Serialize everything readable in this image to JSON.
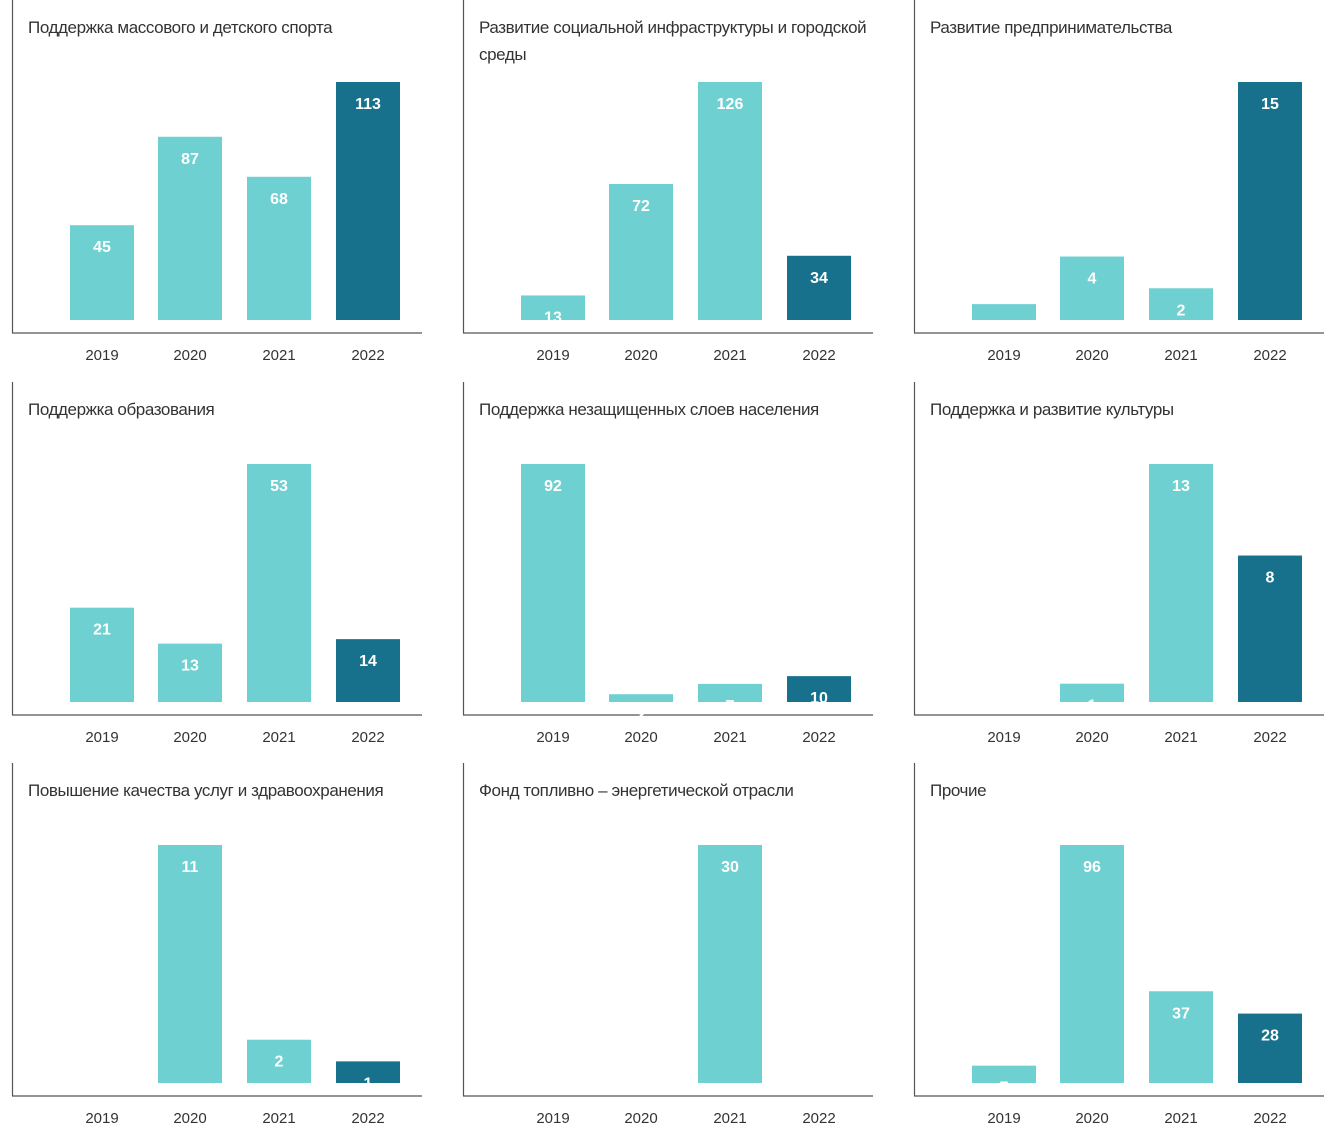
{
  "colors": {
    "regular": "#6fd0d1",
    "highlight": "#17718c",
    "axis": "#555555",
    "text": "#333333",
    "label": "#ffffff"
  },
  "chart_data": [
    {
      "type": "bar",
      "title": "Поддержка массового и детского спорта",
      "categories": [
        "2019",
        "2020",
        "2021",
        "2022"
      ],
      "values": [
        45,
        87,
        68,
        113
      ],
      "highlight": "2022"
    },
    {
      "type": "bar",
      "title": "Развитие социальной инфраструктуры и городской среды",
      "categories": [
        "2019",
        "2020",
        "2021",
        "2022"
      ],
      "values": [
        13,
        72,
        126,
        34
      ],
      "highlight": "2022"
    },
    {
      "type": "bar",
      "title": "Развитие предпринимательства",
      "categories": [
        "2019",
        "2020",
        "2021",
        "2022"
      ],
      "values": [
        1,
        4,
        2,
        15
      ],
      "highlight": "2022"
    },
    {
      "type": "bar",
      "title": "Поддержка образования",
      "categories": [
        "2019",
        "2020",
        "2021",
        "2022"
      ],
      "values": [
        21,
        13,
        53,
        14
      ],
      "highlight": "2022"
    },
    {
      "type": "bar",
      "title": "Поддержка незащищенных слоев населения",
      "categories": [
        "2019",
        "2020",
        "2021",
        "2022"
      ],
      "values": [
        92,
        3,
        7,
        10
      ],
      "highlight": "2022"
    },
    {
      "type": "bar",
      "title": "Поддержка и развитие культуры",
      "categories": [
        "2019",
        "2020",
        "2021",
        "2022"
      ],
      "values": [
        null,
        1,
        13,
        8
      ],
      "highlight": "2022"
    },
    {
      "type": "bar",
      "title": "Повышение качества услуг и здравоохранения",
      "categories": [
        "2019",
        "2020",
        "2021",
        "2022"
      ],
      "values": [
        null,
        11,
        2,
        1
      ],
      "highlight": "2022"
    },
    {
      "type": "bar",
      "title": "Фонд топливно – энергетической отрасли",
      "categories": [
        "2019",
        "2020",
        "2021",
        "2022"
      ],
      "values": [
        null,
        null,
        30,
        null
      ],
      "highlight": "2022"
    },
    {
      "type": "bar",
      "title": "Прочие",
      "categories": [
        "2019",
        "2020",
        "2021",
        "2022"
      ],
      "values": [
        7,
        96,
        37,
        28
      ],
      "highlight": "2022"
    }
  ]
}
